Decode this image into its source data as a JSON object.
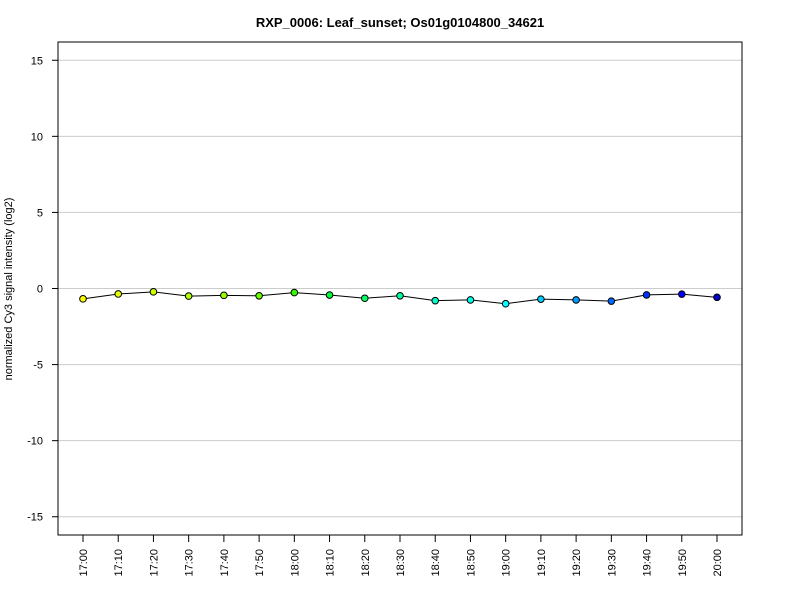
{
  "chart_data": {
    "type": "line",
    "title": "RXP_0006: Leaf_sunset; Os01g0104800_34621",
    "xlabel": "",
    "ylabel": "normalized Cy3 signal intensity (log2)",
    "categories": [
      "17:00",
      "17:10",
      "17:20",
      "17:30",
      "17:40",
      "17:50",
      "18:00",
      "18:10",
      "18:20",
      "18:30",
      "18:40",
      "18:50",
      "19:00",
      "19:10",
      "19:20",
      "19:30",
      "19:40",
      "19:50",
      "20:00"
    ],
    "series": [
      {
        "values": [
          -0.68,
          -0.36,
          -0.22,
          -0.5,
          -0.45,
          -0.48,
          -0.27,
          -0.43,
          -0.64,
          -0.48,
          -0.8,
          -0.75,
          -1.0,
          -0.7,
          -0.75,
          -0.83,
          -0.42,
          -0.37,
          -0.58
        ],
        "point_colors": [
          "#ffff00",
          "#e6ff00",
          "#ccff00",
          "#b3ff00",
          "#99ff00",
          "#66ff00",
          "#33ff00",
          "#00ff33",
          "#00ff66",
          "#00ff99",
          "#00ffcc",
          "#00ffe6",
          "#00ffff",
          "#00ccff",
          "#0099ff",
          "#0066ff",
          "#0033ff",
          "#0000ff",
          "#0000cc"
        ]
      }
    ],
    "ylim": [
      -16.2,
      16.2
    ],
    "yticks": [
      -15,
      -10,
      -5,
      0,
      5,
      10,
      15
    ],
    "grid": "horizontal",
    "line_color": "#000000"
  }
}
